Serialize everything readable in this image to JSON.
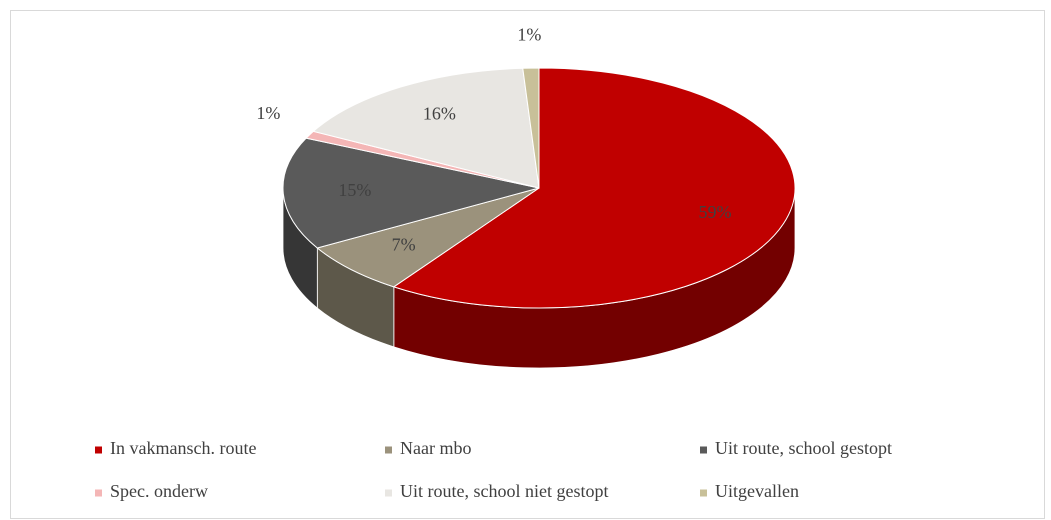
{
  "chart_data": {
    "type": "pie3d",
    "categories": [
      "In vakmansch. route",
      "Naar mbo",
      "Uit route, school gestopt",
      "Spec. onderw",
      "Uit route, school niet gestopt",
      "Uitgevallen"
    ],
    "values": [
      59,
      7,
      15,
      1,
      16,
      1
    ],
    "value_labels": [
      "59%",
      "7%",
      "15%",
      "1%",
      "16%",
      "1%"
    ],
    "colors": [
      "#c00000",
      "#9b927c",
      "#5a5a5a",
      "#f4b6b6",
      "#e8e6e2",
      "#c8c099"
    ],
    "legend": "bottom"
  }
}
